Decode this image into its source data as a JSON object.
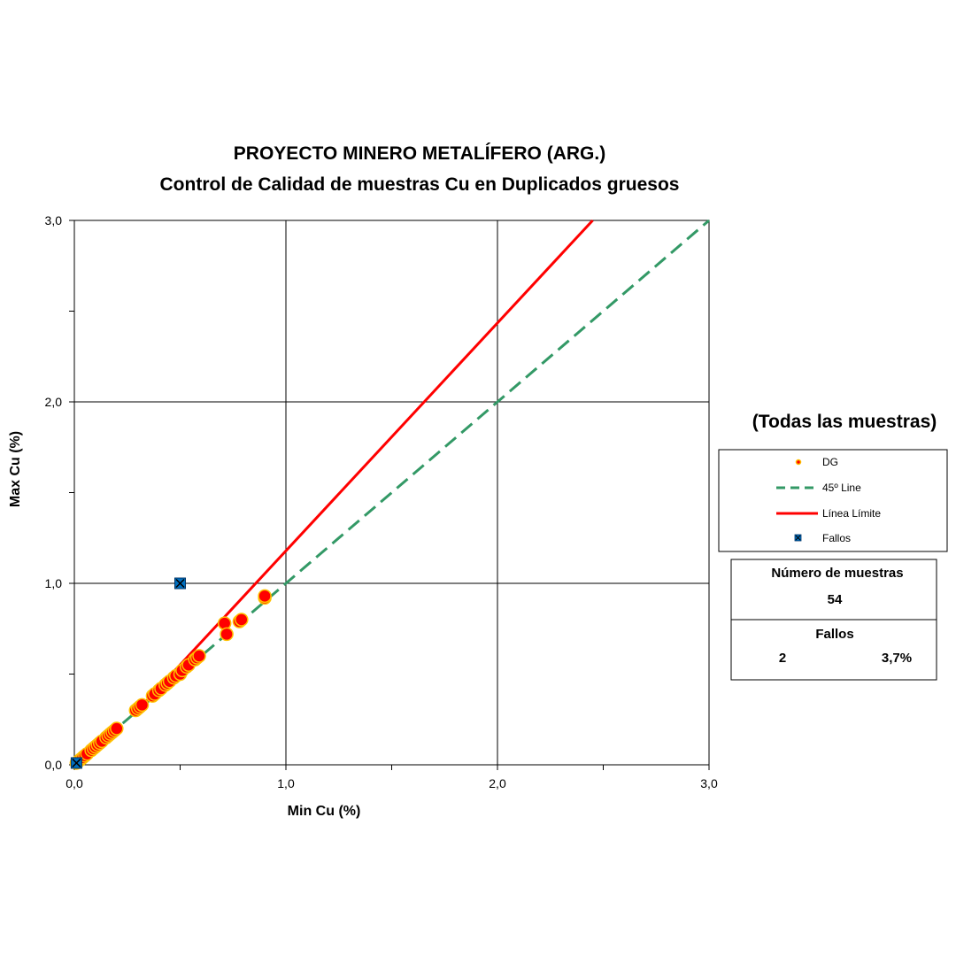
{
  "chart_data": {
    "type": "scatter",
    "title": "PROYECTO MINERO METALÍFERO (ARG.)",
    "subtitle": "Control de Calidad de muestras Cu en Duplicados gruesos",
    "xlabel": "Min Cu (%)",
    "ylabel": "Max Cu (%)",
    "xlim": [
      0,
      3
    ],
    "ylim": [
      0,
      3
    ],
    "x_ticks": [
      "0,0",
      "1,0",
      "2,0",
      "3,0"
    ],
    "y_ticks": [
      "0,0",
      "1,0",
      "2,0",
      "3,0"
    ],
    "grid": true,
    "legend_position": "right",
    "series": [
      {
        "name": "DG",
        "kind": "points",
        "color": "#ff0000",
        "edge_color": "#ffc000",
        "points": [
          [
            0.01,
            0.01
          ],
          [
            0.02,
            0.02
          ],
          [
            0.03,
            0.03
          ],
          [
            0.04,
            0.04
          ],
          [
            0.05,
            0.05
          ],
          [
            0.06,
            0.06
          ],
          [
            0.08,
            0.08
          ],
          [
            0.09,
            0.09
          ],
          [
            0.1,
            0.1
          ],
          [
            0.11,
            0.11
          ],
          [
            0.12,
            0.12
          ],
          [
            0.13,
            0.13
          ],
          [
            0.15,
            0.15
          ],
          [
            0.16,
            0.16
          ],
          [
            0.17,
            0.17
          ],
          [
            0.18,
            0.18
          ],
          [
            0.19,
            0.19
          ],
          [
            0.2,
            0.2
          ],
          [
            0.29,
            0.3
          ],
          [
            0.3,
            0.31
          ],
          [
            0.31,
            0.32
          ],
          [
            0.32,
            0.33
          ],
          [
            0.37,
            0.38
          ],
          [
            0.38,
            0.39
          ],
          [
            0.4,
            0.41
          ],
          [
            0.41,
            0.42
          ],
          [
            0.43,
            0.44
          ],
          [
            0.44,
            0.45
          ],
          [
            0.45,
            0.46
          ],
          [
            0.47,
            0.48
          ],
          [
            0.48,
            0.49
          ],
          [
            0.5,
            0.5
          ],
          [
            0.51,
            0.52
          ],
          [
            0.53,
            0.54
          ],
          [
            0.54,
            0.55
          ],
          [
            0.57,
            0.58
          ],
          [
            0.58,
            0.59
          ],
          [
            0.59,
            0.6
          ],
          [
            0.71,
            0.78
          ],
          [
            0.72,
            0.72
          ],
          [
            0.78,
            0.79
          ],
          [
            0.79,
            0.8
          ],
          [
            0.9,
            0.92
          ],
          [
            0.9,
            0.93
          ]
        ]
      },
      {
        "name": "45º Line",
        "kind": "line",
        "color": "#339966",
        "dash": true,
        "points": [
          [
            0,
            0
          ],
          [
            3,
            3
          ]
        ]
      },
      {
        "name": "Línea Límite",
        "kind": "line",
        "color": "#ff0000",
        "dash": false,
        "points": [
          [
            0.3,
            0.3
          ],
          [
            2.45,
            3.0
          ]
        ]
      },
      {
        "name": "Fallos",
        "kind": "points",
        "color": "#0070c0",
        "marker": "x-square",
        "points": [
          [
            0.5,
            1.0
          ],
          [
            0.01,
            0.01
          ]
        ]
      }
    ],
    "legend": {
      "heading": "(Todas las muestras)",
      "entries": [
        {
          "label": "DG",
          "icon": "dot-icon",
          "color": "#ffc000"
        },
        {
          "label": "45º Line",
          "icon": "dashed-line-icon",
          "color": "#339966"
        },
        {
          "label": "Línea Límite",
          "icon": "solid-line-icon",
          "color": "#ff0000"
        },
        {
          "label": "Fallos",
          "icon": "x-square-icon",
          "color": "#0070c0"
        }
      ]
    },
    "stats": {
      "count_label": "Número de muestras",
      "count_value": "54",
      "fail_label": "Fallos",
      "fail_count": "2",
      "fail_percent": "3,7%"
    }
  }
}
